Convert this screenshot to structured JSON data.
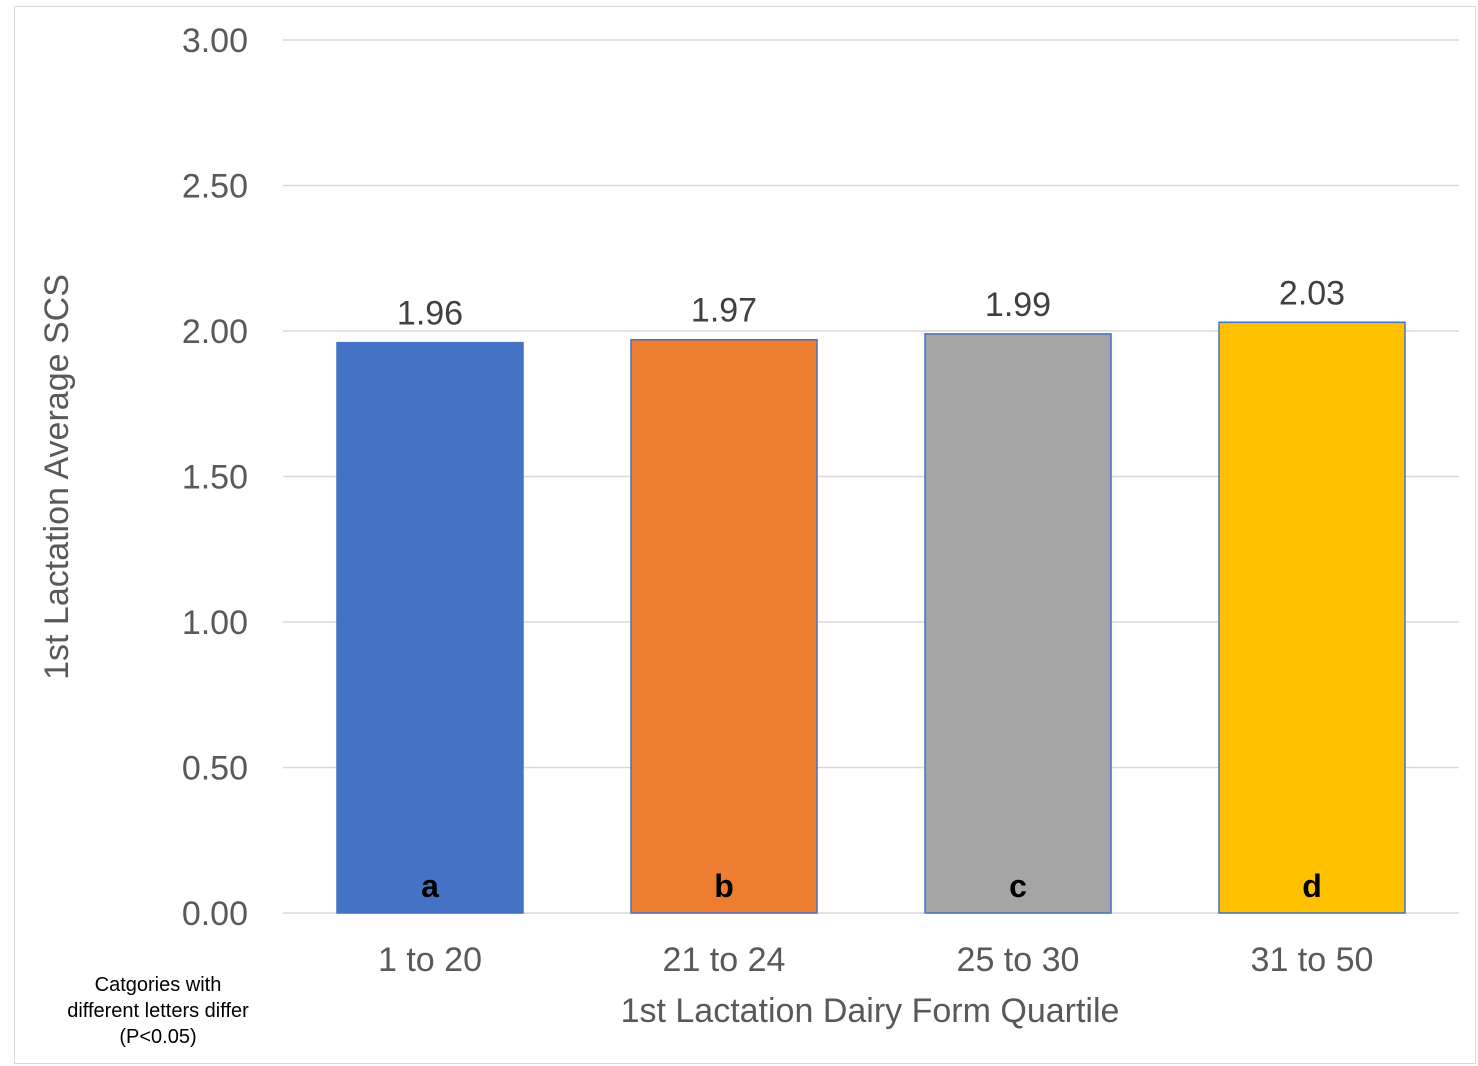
{
  "chart_data": {
    "type": "bar",
    "categories": [
      "1 to 20",
      "21 to 24",
      "25 to 30",
      "31 to 50"
    ],
    "values": [
      1.96,
      1.97,
      1.99,
      2.03
    ],
    "value_labels": [
      "1.96",
      "1.97",
      "1.99",
      "2.03"
    ],
    "group_letters": [
      "a",
      "b",
      "c",
      "d"
    ],
    "colors": [
      "#4472C4",
      "#ED7D31",
      "#A5A5A5",
      "#FFC000"
    ],
    "xlabel": "1st Lactation Dairy Form Quartile",
    "ylabel": "1st Lactation Average SCS",
    "ylim": [
      0,
      3
    ],
    "yticks": [
      "0.00",
      "0.50",
      "1.00",
      "1.50",
      "2.00",
      "2.50",
      "3.00"
    ],
    "grid": true
  },
  "note": {
    "lines": [
      "Catgories with",
      "different letters differ",
      "(P<0.05)"
    ]
  }
}
